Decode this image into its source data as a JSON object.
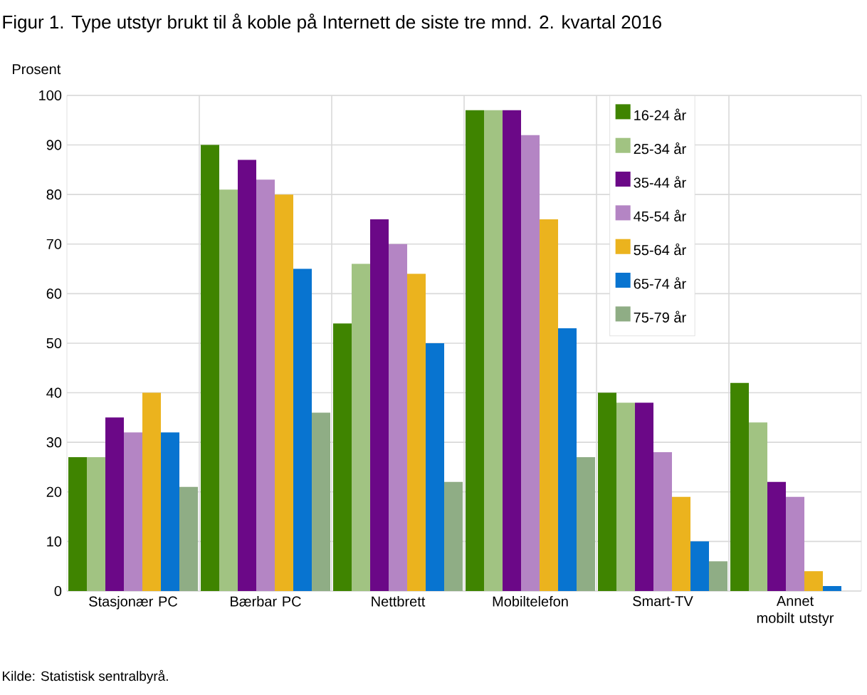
{
  "chart_data": {
    "type": "bar",
    "title": "Figur 1. Type utstyr brukt til å koble på Internett de siste tre mnd. 2. kvartal 2016",
    "ylabel": "Prosent",
    "annotations": [
      "Kilde: Statistisk sentralbyrå."
    ],
    "categories": [
      "Stasjonær PC",
      "Bærbar PC",
      "Nettbrett",
      "Mobiltelefon",
      "Smart-TV",
      "Annet mobilt utstyr"
    ],
    "series": [
      {
        "name": "16-24 år",
        "color": "#3f8400",
        "values": [
          27,
          90,
          54,
          97,
          40,
          42
        ]
      },
      {
        "name": "25-34 år",
        "color": "#a1c382",
        "values": [
          27,
          81,
          66,
          97,
          38,
          34
        ]
      },
      {
        "name": "35-44 år",
        "color": "#6b0887",
        "values": [
          35,
          87,
          75,
          97,
          38,
          22
        ]
      },
      {
        "name": "45-54 år",
        "color": "#b485c4",
        "values": [
          32,
          83,
          70,
          92,
          28,
          19
        ]
      },
      {
        "name": "55-64 år",
        "color": "#ebb31e",
        "values": [
          40,
          80,
          64,
          75,
          19,
          4
        ]
      },
      {
        "name": "65-74 år",
        "color": "#0874d0",
        "values": [
          32,
          65,
          50,
          53,
          10,
          1
        ]
      },
      {
        "name": "75-79 år",
        "color": "#8fad85",
        "values": [
          21,
          36,
          22,
          27,
          6,
          0
        ]
      }
    ],
    "ylim": [
      0,
      100
    ],
    "yticks": [
      0,
      10,
      20,
      30,
      40,
      50,
      60,
      70,
      80,
      90,
      100
    ],
    "grid": true,
    "legend": "top right"
  }
}
